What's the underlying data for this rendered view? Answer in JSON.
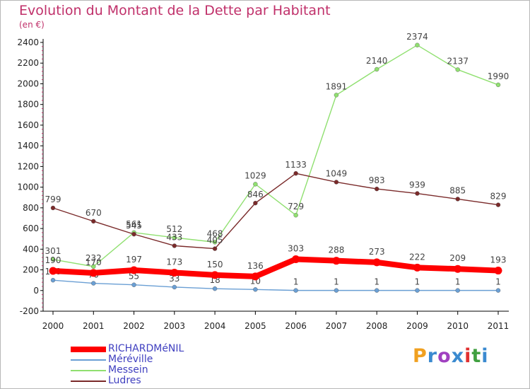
{
  "title": "Evolution du Montant de la Dette par Habitant",
  "subtitle": "(en €)",
  "logo": {
    "text": "Proxiti",
    "colors": [
      "#f0a020",
      "#3a8ad0",
      "#a040c0",
      "#3a8ad0",
      "#e03030",
      "#40a040",
      "#3a8ad0"
    ]
  },
  "chart_data": {
    "type": "line",
    "title": "Evolution du Montant de la Dette par Habitant",
    "subtitle": "(en €)",
    "xlabel": "",
    "ylabel": "",
    "categories": [
      "2000",
      "2001",
      "2002",
      "2003",
      "2004",
      "2005",
      "2006",
      "2007",
      "2008",
      "2009",
      "2010",
      "2011"
    ],
    "ylim": [
      -200,
      2400
    ],
    "yticks": [
      -200,
      0,
      200,
      400,
      600,
      800,
      1000,
      1200,
      1400,
      1600,
      1800,
      2000,
      2200,
      2400
    ],
    "grid": false,
    "legend_position": "bottom-left",
    "series": [
      {
        "name": "RICHARDMéNIL",
        "color": "#ff0000",
        "values": [
          190,
          170,
          197,
          173,
          150,
          136,
          303,
          288,
          273,
          222,
          209,
          193
        ]
      },
      {
        "name": "Méréville",
        "color": "#6a9fd4",
        "values": [
          100,
          70,
          55,
          33,
          18,
          10,
          1,
          1,
          1,
          1,
          1,
          1
        ]
      },
      {
        "name": "Messein",
        "color": "#90e070",
        "values": [
          301,
          232,
          561,
          512,
          468,
          1029,
          729,
          1891,
          2140,
          2374,
          2137,
          1990
        ]
      },
      {
        "name": "Ludres",
        "color": "#7a2a2a",
        "values": [
          799,
          670,
          545,
          433,
          405,
          846,
          1133,
          1049,
          983,
          939,
          885,
          829
        ]
      }
    ]
  }
}
